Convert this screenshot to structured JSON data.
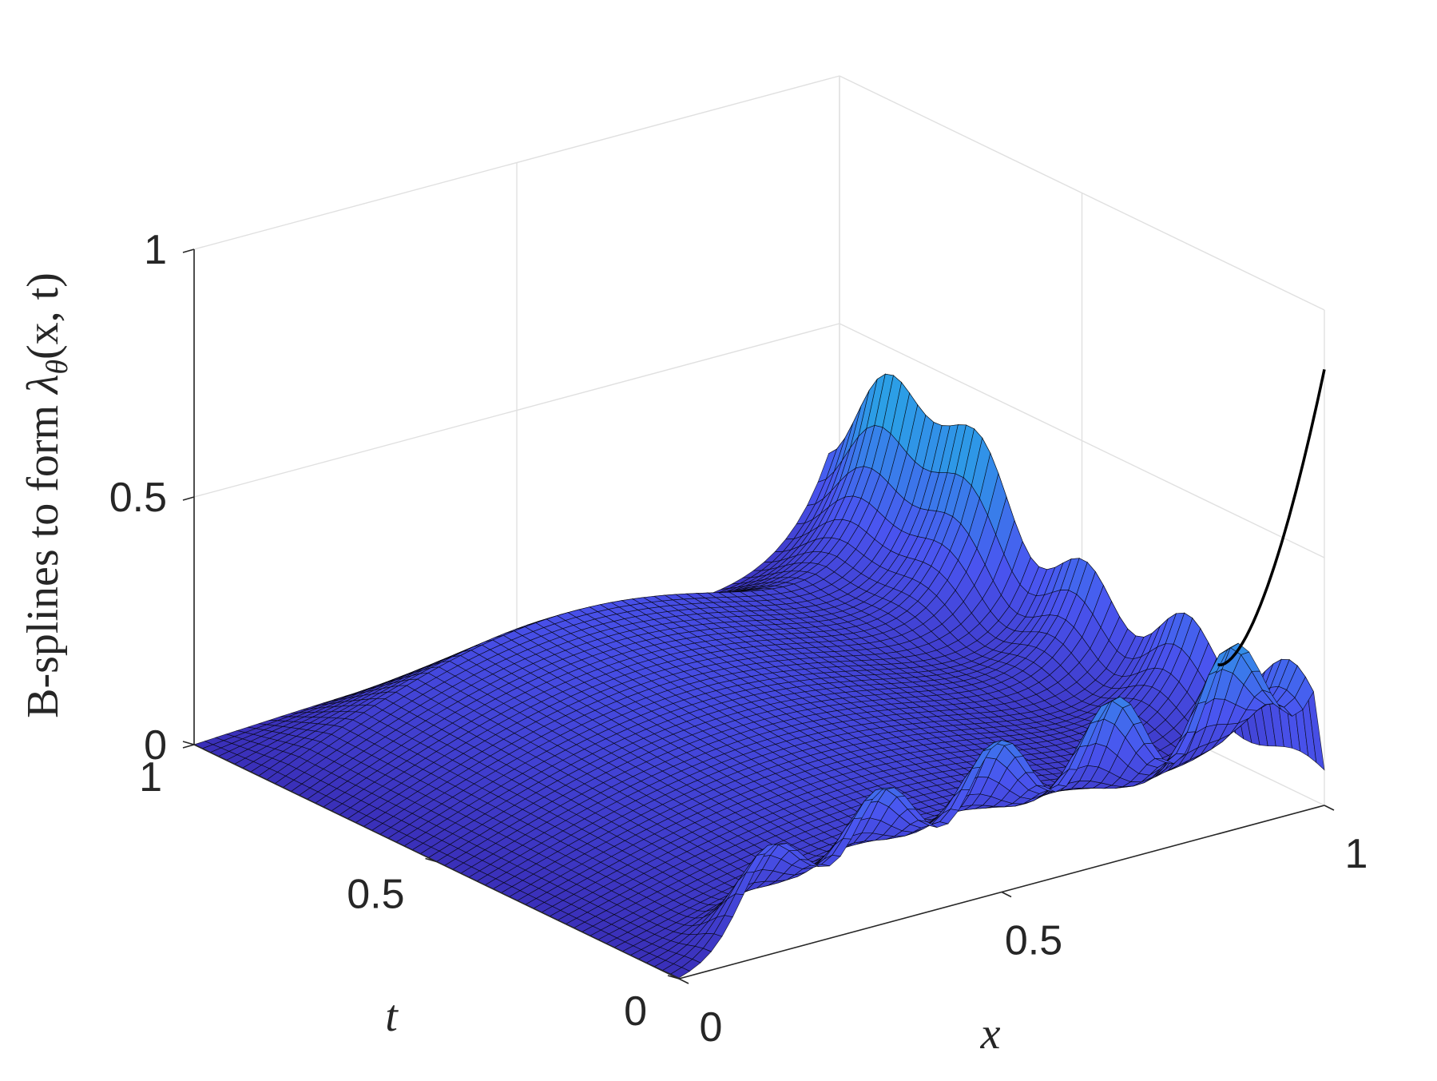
{
  "chart_data": {
    "type": "surface3d",
    "title": "",
    "xlabel": "x",
    "ylabel": "t",
    "zlabel": "B-splines to form λθ(x, t)",
    "zlabel_parts": {
      "text": "B-splines to form ",
      "lambda": "λ",
      "sub": "θ",
      "args": "(x, t)"
    },
    "xlim": [
      0,
      1
    ],
    "ylim": [
      0,
      1
    ],
    "zlim": [
      0,
      1
    ],
    "x_ticks": [
      {
        "value": 0,
        "label": "0"
      },
      {
        "value": 0.5,
        "label": "0.5"
      },
      {
        "value": 1,
        "label": "1"
      }
    ],
    "y_ticks": [
      {
        "value": 0,
        "label": "0"
      },
      {
        "value": 0.5,
        "label": "0.5"
      },
      {
        "value": 1,
        "label": "1"
      }
    ],
    "z_ticks": [
      {
        "value": 0,
        "label": "0"
      },
      {
        "value": 0.5,
        "label": "0.5"
      },
      {
        "value": 1,
        "label": "1"
      }
    ],
    "grid": true,
    "colormap": [
      "#3a2fb8",
      "#4a55f0",
      "#2c9de6",
      "#2ab6ea"
    ],
    "surface_edge_color": "#000000",
    "peak_line": {
      "x": 1,
      "t": 0,
      "z_end": 0.88
    },
    "approx_features": [
      {
        "note": "ridge along x=1 edge",
        "x": 1,
        "t_peak": 0.8,
        "z_peak": 0.58
      },
      {
        "note": "ridge along t=0 edge",
        "t": 0,
        "x_peaks": [
          0.1,
          0.28,
          0.46,
          0.64,
          0.82
        ],
        "z_peaks": [
          0.18,
          0.2,
          0.22,
          0.26,
          0.34
        ]
      },
      {
        "note": "corner spike",
        "x": 1,
        "t": 0,
        "z": 0.88
      }
    ]
  }
}
